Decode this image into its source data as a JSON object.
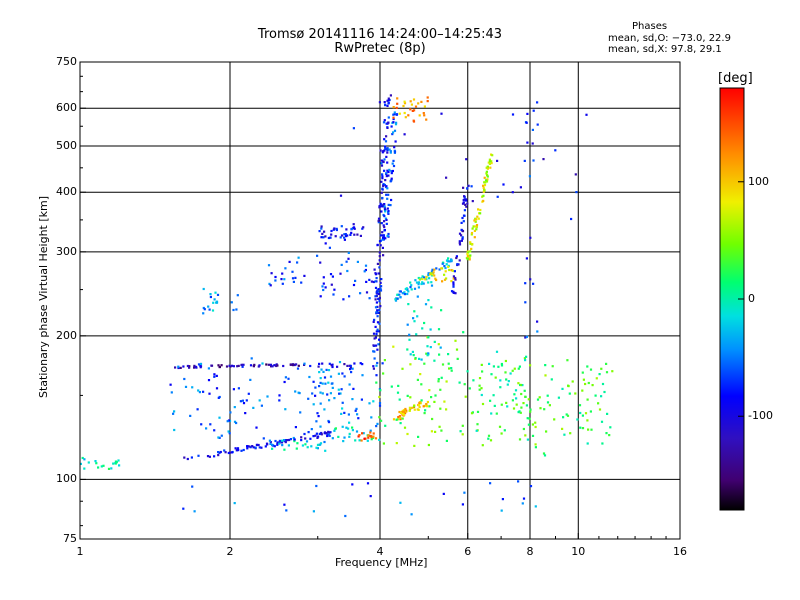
{
  "chart_data": {
    "type": "scatter",
    "title": "Tromsø 20141116 14:24:00–14:25:43",
    "subtitle": "RwPretec (8p)",
    "xlabel": "Frequency [MHz]",
    "ylabel": "Stationary phase Virtual Height [km]",
    "xscale": "log",
    "yscale": "log",
    "xlim": [
      1,
      16
    ],
    "ylim": [
      75,
      750
    ],
    "x_ticks": [
      1,
      2,
      4,
      6,
      8,
      10,
      16
    ],
    "x_grid": [
      2,
      4,
      6,
      8,
      10
    ],
    "y_ticks": [
      75,
      100,
      200,
      300,
      400,
      500,
      600,
      750
    ],
    "y_grid": [
      100,
      200,
      300,
      400,
      500,
      600
    ],
    "grid": true,
    "legend": {
      "title": "Phases",
      "line1": "mean, sd,O: −73.0, 22.9",
      "line2": "mean, sd,X:  97.8, 29.1"
    },
    "colorbar": {
      "label": "[deg]",
      "min": -180,
      "max": 180,
      "ticks": [
        100,
        0,
        -100
      ],
      "colormap": "rainbow"
    },
    "series": [
      {
        "name": "near-vertical trace 4 MHz",
        "x": [
          3.9,
          4.15
        ],
        "y": [
          170,
          640
        ],
        "phase": -90,
        "count": 160,
        "spread": 0.03
      },
      {
        "name": "upper trace 4.2 MHz",
        "x": [
          4.1,
          4.3
        ],
        "y": [
          320,
          600
        ],
        "phase": -60,
        "count": 60,
        "spread": 0.03
      },
      {
        "name": "orange top near 4.5 MHz",
        "x": [
          4.2,
          5.0
        ],
        "y": [
          560,
          630
        ],
        "phase": 120,
        "count": 30,
        "spread": 0.02
      },
      {
        "name": "trace 4.8-5.7 MHz",
        "x": [
          4.3,
          5.6
        ],
        "y": [
          240,
          290
        ],
        "phase": -30,
        "count": 60,
        "spread": 0.03
      },
      {
        "name": "trace 5.2 MHz yellow",
        "x": [
          4.8,
          5.6
        ],
        "y": [
          260,
          280
        ],
        "phase": 90,
        "count": 25,
        "spread": 0.02
      },
      {
        "name": "rising trace 6.5 MHz",
        "x": [
          6.0,
          6.7
        ],
        "y": [
          290,
          480
        ],
        "phase": 75,
        "count": 70,
        "spread": 0.02
      },
      {
        "name": "trace 5.8 MHz blue",
        "x": [
          5.6,
          6.0
        ],
        "y": [
          240,
          420
        ],
        "phase": -100,
        "count": 50,
        "spread": 0.02
      },
      {
        "name": "F-trace 3.1-3.6 MHz",
        "x": [
          3.0,
          3.7
        ],
        "y": [
          320,
          340
        ],
        "phase": -90,
        "count": 40,
        "spread": 0.02
      },
      {
        "name": "E-layer band 1.6-2.7 MHz",
        "x": [
          1.55,
          2.75
        ],
        "y": [
          172,
          174
        ],
        "phase": -125,
        "count": 55,
        "spread": 0.01
      },
      {
        "name": "E-layer band 2.8-3.5 MHz",
        "x": [
          2.8,
          3.6
        ],
        "y": [
          172,
          175
        ],
        "phase": -110,
        "count": 15,
        "spread": 0.01
      },
      {
        "name": "rising low trace",
        "x": [
          1.6,
          3.2
        ],
        "y": [
          110,
          125
        ],
        "phase": -95,
        "count": 80,
        "spread": 0.02
      },
      {
        "name": "low trace 2.5 MHz",
        "x": [
          2.4,
          3.1
        ],
        "y": [
          115,
          120
        ],
        "phase": -20,
        "count": 25,
        "spread": 0.02
      },
      {
        "name": "trace near 3.5 MHz",
        "x": [
          3.2,
          4.0
        ],
        "y": [
          120,
          128
        ],
        "phase": -10,
        "count": 25,
        "spread": 0.02
      },
      {
        "name": "red cluster 3.8 MHz",
        "x": [
          3.6,
          3.9
        ],
        "y": [
          120,
          125
        ],
        "phase": 150,
        "count": 15,
        "spread": 0.02
      },
      {
        "name": "yellow cluster 4.5 MHz",
        "x": [
          4.3,
          5.0
        ],
        "y": [
          135,
          145
        ],
        "phase": 110,
        "count": 45,
        "spread": 0.03
      },
      {
        "name": "scattered 1.6-3 MHz",
        "x": [
          1.5,
          3.0
        ],
        "y": [
          120,
          175
        ],
        "phase": -60,
        "count": 90,
        "spread": 0.06
      },
      {
        "name": "scattered 3-4 MHz",
        "x": [
          3.0,
          4.0
        ],
        "y": [
          130,
          175
        ],
        "phase": -50,
        "count": 70,
        "spread": 0.05
      },
      {
        "name": "scattered 4-6 MHz",
        "x": [
          4.0,
          6.0
        ],
        "y": [
          120,
          200
        ],
        "phase": 40,
        "count": 80,
        "spread": 0.06
      },
      {
        "name": "scattered 6-8 MHz",
        "x": [
          6.0,
          8.0
        ],
        "y": [
          120,
          180
        ],
        "phase": 20,
        "count": 70,
        "spread": 0.06
      },
      {
        "name": "scattered 8-11 MHz",
        "x": [
          7.5,
          11.5
        ],
        "y": [
          115,
          180
        ],
        "phase": 30,
        "count": 90,
        "spread": 0.06
      },
      {
        "name": "low trace near 1 MHz",
        "x": [
          1.0,
          1.2
        ],
        "y": [
          104,
          110
        ],
        "phase": 0,
        "count": 20,
        "spread": 0.03
      },
      {
        "name": "spot 1.9 MHz 230-250 km",
        "x": [
          1.75,
          2.05
        ],
        "y": [
          225,
          250
        ],
        "phase": -40,
        "count": 20,
        "spread": 0.03
      },
      {
        "name": "spot 2.4-2.7 MHz 250-290 km",
        "x": [
          2.4,
          2.8
        ],
        "y": [
          250,
          290
        ],
        "phase": -70,
        "count": 20,
        "spread": 0.04
      },
      {
        "name": "scattered F-region 3-4 MHz",
        "x": [
          3.0,
          4.0
        ],
        "y": [
          240,
          320
        ],
        "phase": -80,
        "count": 40,
        "spread": 0.05
      },
      {
        "name": "sparse high",
        "x": [
          3.2,
          10.8
        ],
        "y": [
          350,
          620
        ],
        "phase": -100,
        "count": 25,
        "spread": 0.1
      },
      {
        "name": "sparse low",
        "x": [
          1.6,
          9.0
        ],
        "y": [
          82,
          100
        ],
        "phase": -60,
        "count": 25,
        "spread": 0.06
      },
      {
        "name": "8 MHz column",
        "x": [
          7.9,
          8.1
        ],
        "y": [
          200,
          620
        ],
        "phase": -80,
        "count": 20,
        "spread": 0.05
      },
      {
        "name": "4.8 MHz mid",
        "x": [
          4.5,
          5.2
        ],
        "y": [
          180,
          260
        ],
        "phase": -20,
        "count": 40,
        "spread": 0.05
      }
    ]
  }
}
